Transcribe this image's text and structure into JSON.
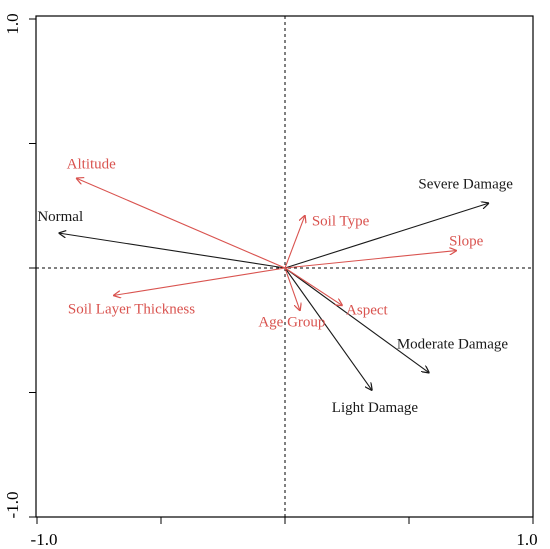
{
  "chart_data": {
    "type": "scatter",
    "subtype": "biplot-arrows",
    "xlim": [
      -1.0,
      1.0
    ],
    "ylim": [
      -1.0,
      1.0
    ],
    "x_tick_labels": [
      "-1.0",
      "1.0"
    ],
    "y_tick_labels": [
      "-1.0",
      "1.0"
    ],
    "reference_lines": "dashed lines at x=0 and y=0",
    "grid": false,
    "colors": {
      "response": "#1a1a1a",
      "environmental": "#d9534f"
    },
    "arrows": [
      {
        "name": "Severe Damage",
        "group": "response",
        "x": 0.82,
        "y": 0.26
      },
      {
        "name": "Normal",
        "group": "response",
        "x": -0.91,
        "y": 0.14
      },
      {
        "name": "Moderate Damage",
        "group": "response",
        "x": 0.58,
        "y": -0.42
      },
      {
        "name": "Light Damage",
        "group": "response",
        "x": 0.35,
        "y": -0.49
      },
      {
        "name": "Altitude",
        "group": "environmental",
        "x": -0.84,
        "y": 0.36
      },
      {
        "name": "Soil Type",
        "group": "environmental",
        "x": 0.08,
        "y": 0.21
      },
      {
        "name": "Slope",
        "group": "environmental",
        "x": 0.69,
        "y": 0.07
      },
      {
        "name": "Aspect",
        "group": "environmental",
        "x": 0.23,
        "y": -0.15
      },
      {
        "name": "Age Group",
        "group": "environmental",
        "x": 0.06,
        "y": -0.17
      },
      {
        "name": "Soil Layer Thickness",
        "group": "environmental",
        "x": -0.69,
        "y": -0.11
      }
    ]
  }
}
